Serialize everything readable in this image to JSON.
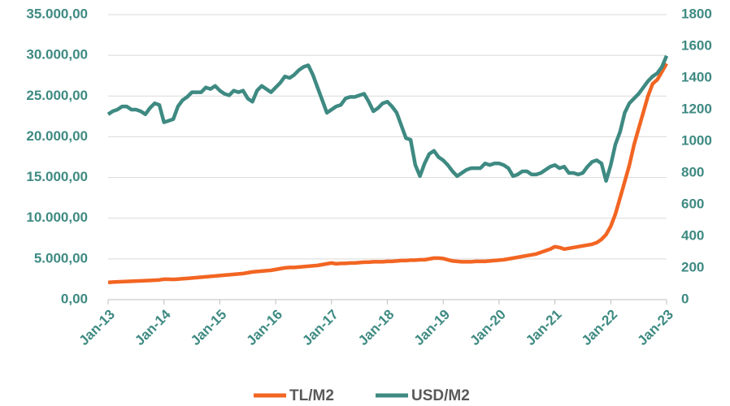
{
  "chart_data": {
    "type": "line",
    "categories": [
      "Jan-13",
      null,
      null,
      null,
      null,
      null,
      null,
      null,
      null,
      null,
      null,
      null,
      "Jan-14",
      null,
      null,
      null,
      null,
      null,
      null,
      null,
      null,
      null,
      null,
      null,
      "Jan-15",
      null,
      null,
      null,
      null,
      null,
      null,
      null,
      null,
      null,
      null,
      null,
      "Jan-16",
      null,
      null,
      null,
      null,
      null,
      null,
      null,
      null,
      null,
      null,
      null,
      "Jan-17",
      null,
      null,
      null,
      null,
      null,
      null,
      null,
      null,
      null,
      null,
      null,
      "Jan-18",
      null,
      null,
      null,
      null,
      null,
      null,
      null,
      null,
      null,
      null,
      null,
      "Jan-19",
      null,
      null,
      null,
      null,
      null,
      null,
      null,
      null,
      null,
      null,
      null,
      "Jan-20",
      null,
      null,
      null,
      null,
      null,
      null,
      null,
      null,
      null,
      null,
      null,
      "Jan-21",
      null,
      null,
      null,
      null,
      null,
      null,
      null,
      null,
      null,
      null,
      null,
      "Jan-22",
      null,
      null,
      null,
      null,
      null,
      null,
      null,
      null,
      null,
      null,
      null,
      "Jan-23"
    ],
    "series": [
      {
        "name": "TL/M2",
        "color": "#f26522",
        "axis": "y",
        "values": [
          2100,
          2150,
          2180,
          2200,
          2230,
          2250,
          2280,
          2300,
          2330,
          2350,
          2380,
          2420,
          2500,
          2500,
          2480,
          2520,
          2560,
          2600,
          2650,
          2700,
          2750,
          2800,
          2850,
          2900,
          2950,
          3000,
          3050,
          3100,
          3150,
          3200,
          3300,
          3400,
          3450,
          3500,
          3550,
          3600,
          3700,
          3800,
          3900,
          3950,
          3950,
          4000,
          4050,
          4100,
          4150,
          4200,
          4300,
          4400,
          4500,
          4400,
          4450,
          4450,
          4500,
          4500,
          4550,
          4600,
          4600,
          4650,
          4650,
          4650,
          4700,
          4700,
          4750,
          4800,
          4800,
          4850,
          4850,
          4900,
          4900,
          5000,
          5100,
          5100,
          5050,
          4900,
          4750,
          4700,
          4650,
          4650,
          4650,
          4700,
          4700,
          4700,
          4750,
          4800,
          4850,
          4900,
          5000,
          5100,
          5200,
          5300,
          5400,
          5500,
          5600,
          5800,
          6000,
          6200,
          6500,
          6400,
          6200,
          6300,
          6400,
          6500,
          6600,
          6700,
          6800,
          7000,
          7400,
          8000,
          9000,
          10500,
          12500,
          14500,
          16500,
          19000,
          21000,
          23000,
          25000,
          26500,
          27000,
          28000,
          29000
        ]
      },
      {
        "name": "USD/M2",
        "color": "#3e8a82",
        "axis": "y2",
        "values": [
          1170,
          1190,
          1200,
          1220,
          1220,
          1200,
          1200,
          1190,
          1170,
          1210,
          1240,
          1230,
          1120,
          1130,
          1140,
          1220,
          1260,
          1280,
          1310,
          1310,
          1310,
          1340,
          1330,
          1350,
          1320,
          1300,
          1290,
          1320,
          1310,
          1320,
          1270,
          1250,
          1320,
          1350,
          1330,
          1310,
          1340,
          1370,
          1410,
          1400,
          1420,
          1450,
          1470,
          1480,
          1420,
          1340,
          1260,
          1180,
          1200,
          1220,
          1230,
          1270,
          1280,
          1280,
          1290,
          1300,
          1250,
          1190,
          1210,
          1240,
          1250,
          1220,
          1180,
          1100,
          1020,
          1010,
          850,
          780,
          860,
          920,
          940,
          900,
          880,
          850,
          810,
          780,
          800,
          820,
          830,
          830,
          830,
          860,
          850,
          860,
          860,
          850,
          830,
          780,
          790,
          810,
          810,
          790,
          790,
          800,
          820,
          840,
          850,
          830,
          840,
          800,
          800,
          790,
          800,
          840,
          870,
          880,
          860,
          750,
          850,
          980,
          1060,
          1180,
          1240,
          1270,
          1300,
          1340,
          1380,
          1410,
          1430,
          1470,
          1540
        ]
      }
    ],
    "ylim": [
      0,
      35000
    ],
    "yticks": [
      {
        "value": 0,
        "label": "0,00"
      },
      {
        "value": 5000,
        "label": "5.000,00"
      },
      {
        "value": 10000,
        "label": "10.000,00"
      },
      {
        "value": 15000,
        "label": "15.000,00"
      },
      {
        "value": 20000,
        "label": "20.000,00"
      },
      {
        "value": 25000,
        "label": "25.000,00"
      },
      {
        "value": 30000,
        "label": "30.000,00"
      },
      {
        "value": 35000,
        "label": "35.000,00"
      }
    ],
    "y2lim": [
      0,
      1800
    ],
    "y2ticks": [
      0,
      200,
      400,
      600,
      800,
      1000,
      1200,
      1400,
      1600,
      1800
    ],
    "grid": true,
    "legend": "bottom"
  }
}
